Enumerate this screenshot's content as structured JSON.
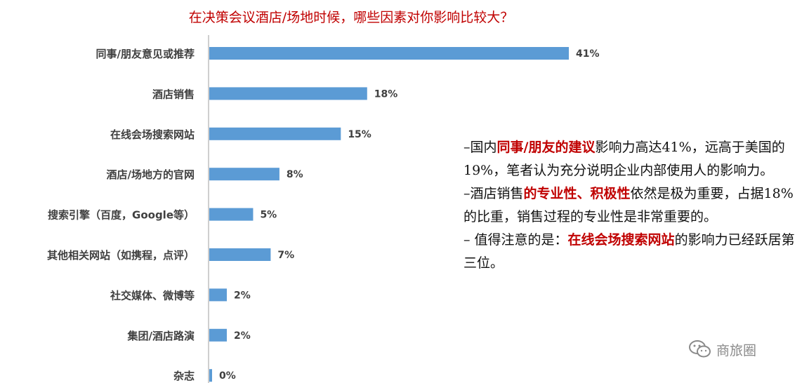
{
  "chart_data": {
    "type": "bar",
    "orientation": "horizontal",
    "title": "在决策会议酒店/场地时候，哪些因素对你影响比较大？",
    "categories": [
      "同事/朋友意见或推荐",
      "酒店销售",
      "在线会场搜索网站",
      "酒店/场地方的官网",
      "搜索引擎（百度，Google等）",
      "其他相关网站（如携程，点评）",
      "社交媒体、微博等",
      "集团/酒店路演",
      "杂志"
    ],
    "values": [
      41,
      18,
      15,
      8,
      5,
      7,
      2,
      2,
      0
    ],
    "value_labels": [
      "41%",
      "18%",
      "15%",
      "8%",
      "5%",
      "7%",
      "2%",
      "2%",
      "0%"
    ],
    "xlim": [
      0,
      41
    ],
    "bar_color": "#5b9bd5",
    "grid": false
  },
  "notes": [
    {
      "segments": [
        {
          "text": "–国内",
          "hl": false
        },
        {
          "text": "同事/朋友的建议",
          "hl": true
        },
        {
          "text": "影响力高达41%，远高于美国的19%，笔者认为充分说明企业内部使用人的影响力。",
          "hl": false
        }
      ]
    },
    {
      "segments": [
        {
          "text": "–酒店销售",
          "hl": false
        },
        {
          "text": "的专业性、积极性",
          "hl": true
        },
        {
          "text": "依然是极为重要，占据18%的比重，销售过程的专业性是非常重要的。",
          "hl": false
        }
      ]
    },
    {
      "segments": [
        {
          "text": "– 值得注意的是：",
          "hl": false
        },
        {
          "text": "在线会场搜索网站",
          "hl": true
        },
        {
          "text": "的影响力已经跃居第三位。",
          "hl": false
        }
      ]
    }
  ],
  "highlight_color": "#c00000",
  "watermark": {
    "text": "商旅圈",
    "icon": "wechat-icon"
  }
}
